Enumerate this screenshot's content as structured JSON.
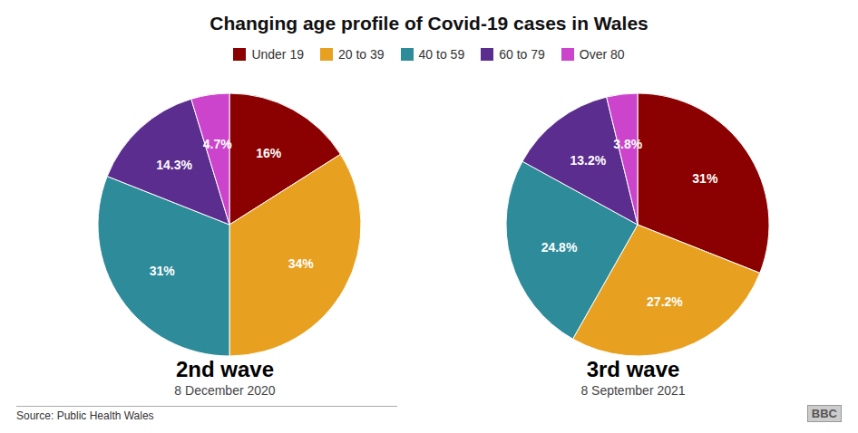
{
  "chart_data": {
    "type": "pie",
    "title": "Changing age profile of Covid-19 cases in Wales",
    "categories": [
      "Under 19",
      "20 to 39",
      "40 to 59",
      "60 to 79",
      "Over 80"
    ],
    "colors": [
      "#8B0000",
      "#E8A020",
      "#2E8B9A",
      "#5B2D8E",
      "#CC44CC"
    ],
    "series": [
      {
        "name": "2nd wave",
        "subtitle": "8 December 2020",
        "values": [
          16,
          34,
          31,
          14.3,
          4.7
        ],
        "value_labels": [
          "16%",
          "34%",
          "31%",
          "14.3%",
          "4.7%"
        ]
      },
      {
        "name": "3rd wave",
        "subtitle": "8 September 2021",
        "values": [
          31,
          27.2,
          24.8,
          13.2,
          3.8
        ],
        "value_labels": [
          "31%",
          "27.2%",
          "24.8%",
          "13.2%",
          "3.8%"
        ]
      }
    ],
    "data_labels": true,
    "legend": "top",
    "annotations": [
      "Source: Public Health Wales",
      "BBC"
    ]
  }
}
